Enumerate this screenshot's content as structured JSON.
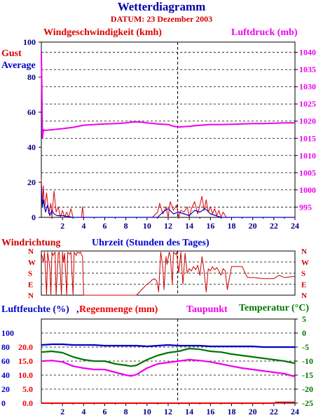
{
  "title": "Wetterdiagramm",
  "date_line": "DATUM: 23 Dezember 2003",
  "colors": {
    "gust": "#dd0000",
    "average": "#0000cc",
    "pressure": "#ee00ee",
    "wind_dir": "#cc0000",
    "humidity": "#0000cc",
    "dewpoint": "#ee00ee",
    "temperature": "#007700",
    "rain": "#ee0000"
  },
  "chart_data": [
    {
      "type": "line",
      "title": "",
      "labels": {
        "left_title": "Windgeschwindigkeit (kmh)",
        "right_title": "Luftdruck (mb)",
        "legend_gust": "Gust",
        "legend_average": "Average"
      },
      "xlim": [
        0,
        24
      ],
      "x_ticks": [
        "2",
        "4",
        "6",
        "8",
        "10",
        "12",
        "14",
        "16",
        "18",
        "20",
        "22",
        "24"
      ],
      "y_left_lim": [
        0,
        100
      ],
      "y_left_ticks": [
        "0",
        "20",
        "40",
        "60",
        "80",
        "100"
      ],
      "y_right_lim": [
        992,
        1043
      ],
      "y_right_ticks": [
        "995",
        "1000",
        "1005",
        "1010",
        "1015",
        "1020",
        "1025",
        "1030",
        "1035",
        "1040"
      ],
      "grid": true,
      "marker_hour": 12.9,
      "series": [
        {
          "name": "Luftdruck",
          "axis": "right",
          "x": [
            0.0,
            0.05,
            0.1,
            0.2,
            0.3,
            1.0,
            2.0,
            3.0,
            4.0,
            5.0,
            6.0,
            7.0,
            8.0,
            8.5,
            9.0,
            9.5,
            10.0,
            11.0,
            12.0,
            12.5,
            13.0,
            14.0,
            15.0,
            16.0,
            17.0,
            18.0,
            19.0,
            20.0,
            21.0,
            22.0,
            23.0,
            24.0
          ],
          "y": [
            1040,
            1028,
            1015,
            1017.5,
            1017.3,
            1017.5,
            1017.8,
            1018.2,
            1018.8,
            1019.0,
            1019.2,
            1019.3,
            1019.5,
            1019.7,
            1019.8,
            1019.7,
            1019.5,
            1019.2,
            1019.0,
            1018.5,
            1018.3,
            1018.5,
            1018.8,
            1019.0,
            1019.0,
            1019.1,
            1019.2,
            1019.3,
            1019.3,
            1019.4,
            1019.5,
            1019.5
          ]
        },
        {
          "name": "Gust",
          "axis": "left",
          "x": [
            0.0,
            0.1,
            0.2,
            0.3,
            0.5,
            0.7,
            0.9,
            1.0,
            1.2,
            1.4,
            1.6,
            1.8,
            2.0,
            2.2,
            2.4,
            2.6,
            2.8,
            3.0,
            3.2,
            3.5,
            3.8,
            3.9,
            4.0,
            4.2,
            9.0,
            9.5,
            10.0,
            10.5,
            11.0,
            11.2,
            11.5,
            11.8,
            12.0,
            12.2,
            12.5,
            12.8,
            13.0,
            13.2,
            13.5,
            13.8,
            14.0,
            14.2,
            14.5,
            14.8,
            15.0,
            15.2,
            15.4,
            15.6,
            15.8,
            16.0,
            16.2,
            16.4,
            16.6,
            16.8,
            17.0,
            17.2,
            17.5,
            24.0
          ],
          "y": [
            22,
            8,
            18,
            5,
            14,
            2,
            8,
            0,
            15,
            3,
            6,
            0,
            4,
            0,
            3,
            0,
            5,
            0,
            0,
            0,
            0,
            6,
            0,
            0,
            0,
            0,
            0,
            0,
            3,
            8,
            2,
            6,
            0,
            9,
            4,
            7,
            0,
            4,
            3,
            6,
            0,
            5,
            9,
            2,
            7,
            12,
            4,
            10,
            3,
            6,
            2,
            5,
            1,
            4,
            0,
            3,
            0,
            0
          ]
        },
        {
          "name": "Average",
          "axis": "left",
          "x": [
            0.0,
            0.1,
            0.2,
            0.4,
            0.6,
            0.8,
            1.0,
            1.2,
            1.5,
            2.0,
            3.0,
            11.0,
            11.5,
            12.0,
            12.5,
            13.0,
            14.0,
            14.5,
            15.0,
            15.5,
            16.0,
            17.0,
            24.0
          ],
          "y": [
            18,
            6,
            10,
            3,
            7,
            1,
            4,
            2,
            1,
            1,
            0,
            0,
            3,
            5,
            2,
            3,
            1,
            4,
            3,
            5,
            2,
            0,
            0
          ]
        }
      ]
    },
    {
      "type": "line",
      "title": "",
      "labels": {
        "left_title": "Windrichtung",
        "center_title": "Uhrzeit (Stunden des Tages)"
      },
      "xlim": [
        0,
        24
      ],
      "categories": [
        "N",
        "W",
        "S",
        "E",
        "N"
      ],
      "y_lim": [
        0,
        4
      ],
      "grid": true,
      "marker_hour": 12.9,
      "series": [
        {
          "name": "Windrichtung",
          "x": [
            0.0,
            0.2,
            0.3,
            0.5,
            0.6,
            0.8,
            0.9,
            1.0,
            1.1,
            1.3,
            1.4,
            1.6,
            1.7,
            1.9,
            2.0,
            2.1,
            2.2,
            2.4,
            2.5,
            2.7,
            2.8,
            3.0,
            3.1,
            3.3,
            3.4,
            3.6,
            3.7,
            3.9,
            4.0,
            9.0,
            9.5,
            10.0,
            10.2,
            10.5,
            10.7,
            10.9,
            11.0,
            11.1,
            11.3,
            11.5,
            11.6,
            11.8,
            11.9,
            12.1,
            12.2,
            12.4,
            12.5,
            12.7,
            12.8,
            13.0,
            13.2,
            13.4,
            13.6,
            13.8,
            14.0,
            14.2,
            14.4,
            14.6,
            14.8,
            15.0,
            15.2,
            15.4,
            15.6,
            15.8,
            16.0,
            16.2,
            16.4,
            16.6,
            16.8,
            17.0,
            17.2,
            17.4,
            17.6,
            18.0,
            18.5,
            19.0,
            19.5,
            20.0,
            21.0,
            22.0,
            22.5,
            23.0,
            24.0
          ],
          "y": [
            3.8,
            3.0,
            3.9,
            0.0,
            3.9,
            2.5,
            0.0,
            3.9,
            3.6,
            3.9,
            0.0,
            3.8,
            3.9,
            0.0,
            3.9,
            3.0,
            3.8,
            0.0,
            3.9,
            3.7,
            3.9,
            0.0,
            3.9,
            3.6,
            3.9,
            3.8,
            3.9,
            3.5,
            0.0,
            0.0,
            0.5,
            1.0,
            1.1,
            1.4,
            1.5,
            1.3,
            1.0,
            0.3,
            3.9,
            2.5,
            0.5,
            3.5,
            2.8,
            3.9,
            3.6,
            1.0,
            3.9,
            3.7,
            3.9,
            2.0,
            3.9,
            1.0,
            3.8,
            2.0,
            2.4,
            2.2,
            2.6,
            2.3,
            2.7,
            1.8,
            3.5,
            2.2,
            0.3,
            2.4,
            2.2,
            2.6,
            2.3,
            2.5,
            2.2,
            1.8,
            2.4,
            2.2,
            0.5,
            2.6,
            2.6,
            2.6,
            1.6,
            1.6,
            1.5,
            1.5,
            1.8,
            1.6,
            1.7
          ]
        }
      ]
    },
    {
      "type": "line",
      "title": "",
      "labels": {
        "humidity_title": "Luftfeuchte (%)",
        "rain_title": "Regenmenge (mm)",
        "dewpoint_title": "Taupunkt",
        "temperature_title": "Temperatur (°C)"
      },
      "xlim": [
        0,
        24
      ],
      "x_ticks": [
        "2",
        "4",
        "6",
        "8",
        "10",
        "12",
        "14",
        "16",
        "18",
        "20",
        "22",
        "24"
      ],
      "y_humidity_ticks": [
        "0",
        "20",
        "40",
        "60",
        "80",
        "100"
      ],
      "y_rain_ticks": [
        "0.0",
        "5.0",
        "10.0",
        "15.0",
        "20.0"
      ],
      "y_temp_lim": [
        -25,
        5
      ],
      "y_temp_ticks": [
        "5",
        "0",
        "-5",
        "-10",
        "-15",
        "-20",
        "-25"
      ],
      "grid": true,
      "marker_hour": 12.9,
      "series": [
        {
          "name": "Luftfeuchte",
          "axis": "humidity",
          "x": [
            0,
            1,
            2,
            3,
            4,
            5,
            6,
            7,
            8,
            9,
            10,
            11,
            12,
            13,
            14,
            15,
            16,
            17,
            18,
            19,
            20,
            21,
            22,
            23,
            24
          ],
          "y": [
            83,
            84,
            84,
            83,
            83,
            83,
            82,
            82,
            82,
            82,
            81,
            82,
            83,
            82,
            82,
            82,
            81,
            81,
            81,
            81,
            81,
            80,
            80,
            80,
            80
          ]
        },
        {
          "name": "Temperatur",
          "axis": "temperature",
          "x": [
            0,
            1,
            2,
            3,
            4,
            5,
            6,
            7,
            8,
            8.5,
            9,
            10,
            11,
            12,
            13,
            14,
            15,
            16,
            17,
            18,
            19,
            20,
            21,
            22,
            23,
            24
          ],
          "y": [
            -6.8,
            -6.5,
            -7.0,
            -8.5,
            -9.5,
            -10.0,
            -10.0,
            -11.0,
            -11.5,
            -11.8,
            -11.5,
            -9.5,
            -8.0,
            -7.0,
            -6.5,
            -5.5,
            -5.8,
            -6.5,
            -6.8,
            -7.5,
            -8.0,
            -8.5,
            -9.0,
            -9.5,
            -10.0,
            -10.8
          ]
        },
        {
          "name": "Taupunkt",
          "axis": "temperature",
          "x": [
            0,
            1,
            2,
            3,
            4,
            5,
            6,
            7,
            8,
            8.5,
            9,
            10,
            11,
            12,
            13,
            14,
            15,
            16,
            17,
            18,
            19,
            20,
            21,
            22,
            23,
            24
          ],
          "y": [
            -10.0,
            -9.8,
            -10.3,
            -11.8,
            -12.5,
            -13.0,
            -13.0,
            -14.0,
            -15.0,
            -15.3,
            -14.8,
            -12.5,
            -11.0,
            -10.5,
            -10.0,
            -9.5,
            -9.8,
            -10.3,
            -11.0,
            -11.8,
            -12.5,
            -13.0,
            -13.5,
            -14.0,
            -14.5,
            -15.5
          ]
        },
        {
          "name": "Regenmenge",
          "axis": "rain",
          "x": [
            0,
            22,
            22.2,
            24
          ],
          "y": [
            0.0,
            0.0,
            0.3,
            0.3
          ]
        }
      ]
    }
  ]
}
